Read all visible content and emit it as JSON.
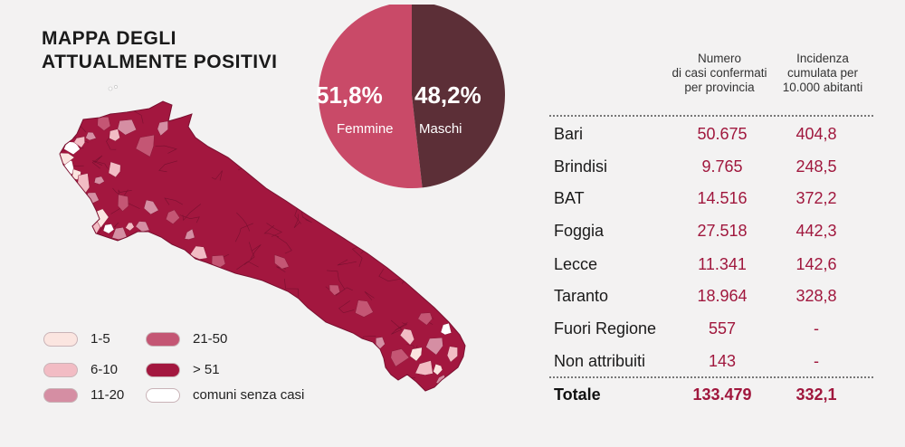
{
  "title": {
    "line1": "MAPPA DEGLI",
    "line2": "ATTUALMENTE POSITIVI"
  },
  "colors": {
    "c1": "#fbe5e0",
    "c2": "#f2bcc4",
    "c3": "#d58ea3",
    "c4": "#c45674",
    "c5": "#a3173f",
    "none": "#ffffff",
    "female": "#c94a68",
    "male": "#5c2f37"
  },
  "legend": [
    {
      "label": "1-5",
      "color": "#fbe5e0"
    },
    {
      "label": "6-10",
      "color": "#f2bcc4"
    },
    {
      "label": "11-20",
      "color": "#d58ea3"
    },
    {
      "label": "21-50",
      "color": "#c45674"
    },
    {
      "label": "> 51",
      "color": "#a3173f"
    },
    {
      "label": "comuni senza casi",
      "color": "#ffffff"
    }
  ],
  "chart_data": {
    "type": "pie",
    "slices": [
      {
        "label": "Femmine",
        "value": 51.8,
        "display": "51,8%",
        "color": "#c94a68"
      },
      {
        "label": "Maschi",
        "value": 48.2,
        "display": "48,2%",
        "color": "#5c2f37"
      }
    ]
  },
  "table": {
    "headers": {
      "cases": [
        "Numero",
        "di casi confermati",
        "per provincia"
      ],
      "incidence": [
        "Incidenza",
        "cumulata per",
        "10.000 abitanti"
      ]
    },
    "rows": [
      {
        "name": "Bari",
        "cases": "50.675",
        "incidence": "404,8"
      },
      {
        "name": "Brindisi",
        "cases": "9.765",
        "incidence": "248,5"
      },
      {
        "name": "BAT",
        "cases": "14.516",
        "incidence": "372,2"
      },
      {
        "name": "Foggia",
        "cases": "27.518",
        "incidence": "442,3"
      },
      {
        "name": "Lecce",
        "cases": "11.341",
        "incidence": "142,6"
      },
      {
        "name": "Taranto",
        "cases": "18.964",
        "incidence": "328,8"
      },
      {
        "name": "Fuori Regione",
        "cases": "557",
        "incidence": "-"
      },
      {
        "name": "Non attribuiti",
        "cases": "143",
        "incidence": "-"
      }
    ],
    "total": {
      "name": "Totale",
      "cases": "133.479",
      "incidence": "332,1"
    }
  }
}
